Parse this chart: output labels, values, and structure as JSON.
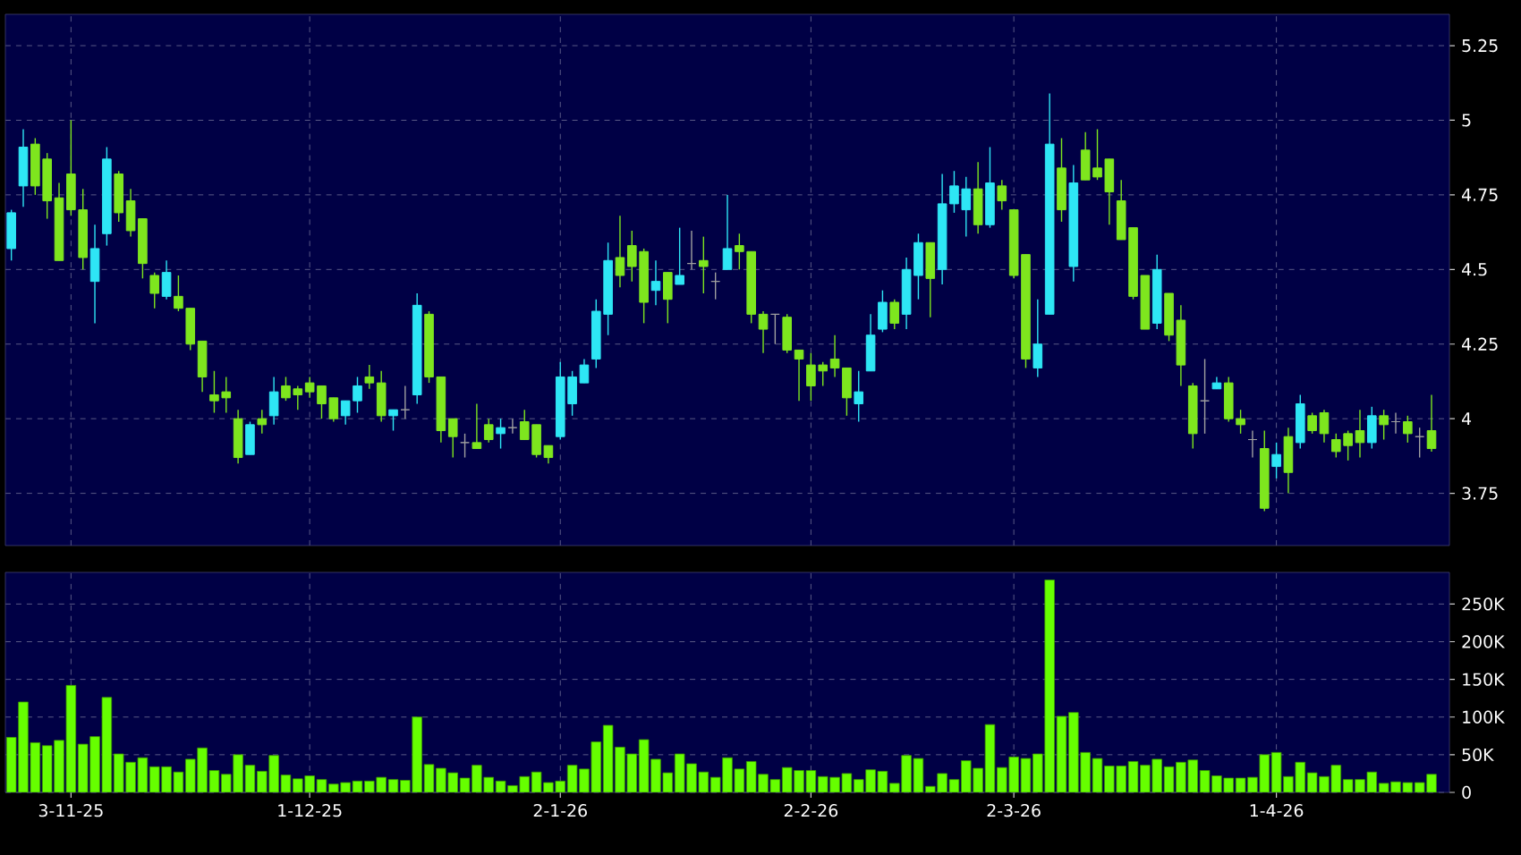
{
  "chart_data": [
    {
      "type": "candlestick",
      "categories": [
        null,
        null,
        null,
        null,
        null,
        null,
        null,
        null,
        null,
        null,
        null,
        null,
        null,
        null,
        null,
        null,
        null,
        null,
        null,
        null,
        null,
        null,
        null,
        null,
        null,
        null,
        null,
        null,
        null,
        null,
        null,
        null,
        null,
        null,
        null,
        null,
        null,
        null,
        null,
        null,
        null,
        null,
        null,
        null,
        null,
        null,
        null,
        null,
        null,
        null,
        null,
        null,
        null,
        null,
        null,
        null,
        null,
        null,
        null,
        null,
        null,
        null,
        null,
        null,
        null,
        null,
        null,
        null,
        null,
        null,
        null,
        null,
        null,
        null,
        null,
        null,
        null,
        null,
        null,
        null,
        null,
        null,
        null,
        null,
        null,
        null,
        null,
        null,
        null,
        null,
        null,
        null,
        null,
        null,
        null,
        null,
        null,
        null,
        null,
        null,
        null,
        null,
        null,
        null,
        null,
        null,
        null,
        null,
        null,
        null,
        null,
        null,
        null,
        null,
        null,
        null,
        null,
        null,
        null,
        null
      ],
      "ohlc": [
        [
          4.57,
          4.7,
          4.53,
          4.69
        ],
        [
          4.78,
          4.97,
          4.71,
          4.91
        ],
        [
          4.92,
          4.94,
          4.75,
          4.78
        ],
        [
          4.87,
          4.89,
          4.67,
          4.73
        ],
        [
          4.74,
          4.79,
          4.53,
          4.53
        ],
        [
          4.82,
          5.0,
          4.68,
          4.7
        ],
        [
          4.7,
          4.77,
          4.5,
          4.54
        ],
        [
          4.46,
          4.65,
          4.32,
          4.57
        ],
        [
          4.62,
          4.91,
          4.58,
          4.87
        ],
        [
          4.82,
          4.83,
          4.66,
          4.69
        ],
        [
          4.73,
          4.77,
          4.61,
          4.63
        ],
        [
          4.67,
          4.67,
          4.47,
          4.52
        ],
        [
          4.48,
          4.49,
          4.37,
          4.42
        ],
        [
          4.41,
          4.53,
          4.4,
          4.49
        ],
        [
          4.41,
          4.48,
          4.36,
          4.37
        ],
        [
          4.37,
          4.37,
          4.23,
          4.25
        ],
        [
          4.26,
          4.26,
          4.09,
          4.14
        ],
        [
          4.08,
          4.16,
          4.02,
          4.06
        ],
        [
          4.09,
          4.14,
          4.02,
          4.07
        ],
        [
          4.0,
          4.03,
          3.85,
          3.87
        ],
        [
          3.88,
          3.99,
          3.88,
          3.98
        ],
        [
          4.0,
          4.03,
          3.95,
          3.98
        ],
        [
          4.01,
          4.14,
          3.98,
          4.09
        ],
        [
          4.11,
          4.14,
          4.06,
          4.07
        ],
        [
          4.1,
          4.11,
          4.03,
          4.08
        ],
        [
          4.12,
          4.14,
          4.07,
          4.09
        ],
        [
          4.11,
          4.11,
          4.0,
          4.05
        ],
        [
          4.07,
          4.07,
          3.99,
          4.0
        ],
        [
          4.01,
          4.06,
          3.98,
          4.06
        ],
        [
          4.06,
          4.14,
          4.02,
          4.11
        ],
        [
          4.14,
          4.18,
          4.1,
          4.12
        ],
        [
          4.12,
          4.16,
          3.99,
          4.01
        ],
        [
          4.01,
          4.03,
          3.96,
          4.03
        ],
        [
          4.03,
          4.11,
          4.0,
          4.03
        ],
        [
          4.08,
          4.42,
          4.05,
          4.38
        ],
        [
          4.35,
          4.36,
          4.12,
          4.14
        ],
        [
          4.14,
          4.14,
          3.92,
          3.96
        ],
        [
          4.0,
          4.0,
          3.87,
          3.94
        ],
        [
          3.92,
          3.95,
          3.87,
          3.92
        ],
        [
          3.92,
          4.05,
          3.9,
          3.9
        ],
        [
          3.98,
          4.0,
          3.92,
          3.93
        ],
        [
          3.95,
          4.0,
          3.9,
          3.97
        ],
        [
          3.97,
          4.0,
          3.95,
          3.97
        ],
        [
          3.99,
          4.03,
          3.93,
          3.93
        ],
        [
          3.98,
          3.98,
          3.87,
          3.88
        ],
        [
          3.91,
          3.91,
          3.85,
          3.87
        ],
        [
          3.94,
          4.19,
          3.93,
          4.14
        ],
        [
          4.05,
          4.16,
          4.01,
          4.14
        ],
        [
          4.12,
          4.2,
          4.12,
          4.18
        ],
        [
          4.2,
          4.4,
          4.17,
          4.36
        ],
        [
          4.35,
          4.59,
          4.28,
          4.53
        ],
        [
          4.54,
          4.68,
          4.44,
          4.48
        ],
        [
          4.58,
          4.63,
          4.46,
          4.51
        ],
        [
          4.56,
          4.57,
          4.32,
          4.39
        ],
        [
          4.43,
          4.53,
          4.38,
          4.46
        ],
        [
          4.49,
          4.49,
          4.32,
          4.4
        ],
        [
          4.45,
          4.64,
          4.45,
          4.48
        ],
        [
          4.52,
          4.63,
          4.5,
          4.52
        ],
        [
          4.53,
          4.61,
          4.42,
          4.51
        ],
        [
          4.46,
          4.49,
          4.4,
          4.46
        ],
        [
          4.5,
          4.75,
          4.5,
          4.57
        ],
        [
          4.58,
          4.62,
          4.5,
          4.56
        ],
        [
          4.56,
          4.56,
          4.32,
          4.35
        ],
        [
          4.35,
          4.36,
          4.22,
          4.3
        ],
        [
          4.35,
          4.35,
          4.25,
          4.35
        ],
        [
          4.34,
          4.35,
          4.22,
          4.23
        ],
        [
          4.23,
          4.23,
          4.06,
          4.2
        ],
        [
          4.18,
          4.22,
          4.06,
          4.11
        ],
        [
          4.18,
          4.19,
          4.11,
          4.16
        ],
        [
          4.2,
          4.28,
          4.14,
          4.17
        ],
        [
          4.17,
          4.17,
          4.01,
          4.07
        ],
        [
          4.05,
          4.16,
          3.99,
          4.09
        ],
        [
          4.16,
          4.35,
          4.16,
          4.28
        ],
        [
          4.3,
          4.43,
          4.29,
          4.39
        ],
        [
          4.39,
          4.4,
          4.3,
          4.32
        ],
        [
          4.35,
          4.54,
          4.3,
          4.5
        ],
        [
          4.48,
          4.62,
          4.4,
          4.59
        ],
        [
          4.59,
          4.59,
          4.34,
          4.47
        ],
        [
          4.5,
          4.82,
          4.45,
          4.72
        ],
        [
          4.72,
          4.83,
          4.69,
          4.78
        ],
        [
          4.7,
          4.81,
          4.61,
          4.77
        ],
        [
          4.77,
          4.86,
          4.62,
          4.65
        ],
        [
          4.65,
          4.91,
          4.64,
          4.79
        ],
        [
          4.78,
          4.8,
          4.7,
          4.73
        ],
        [
          4.7,
          4.7,
          4.47,
          4.48
        ],
        [
          4.55,
          4.55,
          4.17,
          4.2
        ],
        [
          4.17,
          4.4,
          4.14,
          4.25
        ],
        [
          4.35,
          5.09,
          4.35,
          4.92
        ],
        [
          4.84,
          4.94,
          4.66,
          4.7
        ],
        [
          4.51,
          4.85,
          4.46,
          4.79
        ],
        [
          4.9,
          4.96,
          4.8,
          4.8
        ],
        [
          4.84,
          4.97,
          4.8,
          4.81
        ],
        [
          4.87,
          4.87,
          4.65,
          4.76
        ],
        [
          4.73,
          4.8,
          4.6,
          4.6
        ],
        [
          4.64,
          4.64,
          4.4,
          4.41
        ],
        [
          4.48,
          4.48,
          4.3,
          4.3
        ],
        [
          4.32,
          4.55,
          4.3,
          4.5
        ],
        [
          4.42,
          4.42,
          4.26,
          4.28
        ],
        [
          4.33,
          4.38,
          4.11,
          4.18
        ],
        [
          4.11,
          4.12,
          3.9,
          3.95
        ],
        [
          4.06,
          4.2,
          3.95,
          4.06
        ],
        [
          4.1,
          4.14,
          4.1,
          4.12
        ],
        [
          4.12,
          4.14,
          3.99,
          4.0
        ],
        [
          4.0,
          4.03,
          3.95,
          3.98
        ],
        [
          3.93,
          3.96,
          3.87,
          3.93
        ],
        [
          3.9,
          3.96,
          3.69,
          3.7
        ],
        [
          3.84,
          3.92,
          3.8,
          3.88
        ],
        [
          3.94,
          3.97,
          3.75,
          3.82
        ],
        [
          3.92,
          4.08,
          3.9,
          4.05
        ],
        [
          4.01,
          4.02,
          3.95,
          3.96
        ],
        [
          4.02,
          4.03,
          3.92,
          3.95
        ],
        [
          3.93,
          3.95,
          3.87,
          3.89
        ],
        [
          3.95,
          3.96,
          3.86,
          3.91
        ],
        [
          3.96,
          4.03,
          3.87,
          3.92
        ],
        [
          3.92,
          4.04,
          3.9,
          4.01
        ],
        [
          4.01,
          4.03,
          3.93,
          3.98
        ],
        [
          3.99,
          4.02,
          3.95,
          3.99
        ],
        [
          3.99,
          4.01,
          3.92,
          3.95
        ],
        [
          3.94,
          3.97,
          3.87,
          3.94
        ],
        [
          3.96,
          4.08,
          3.89,
          3.9
        ]
      ],
      "colors": [
        "#2ee6f5",
        "#2ee6f5",
        "#7ee61e",
        "#7ee61e",
        "#7ee61e",
        "#7ee61e",
        "#7ee61e",
        "#2ee6f5",
        "#2ee6f5",
        "#7ee61e",
        "#7ee61e",
        "#7ee61e",
        "#7ee61e",
        "#2ee6f5",
        "#7ee61e",
        "#7ee61e",
        "#7ee61e",
        "#7ee61e",
        "#7ee61e",
        "#7ee61e",
        "#2ee6f5",
        "#7ee61e",
        "#2ee6f5",
        "#7ee61e",
        "#7ee61e",
        "#7ee61e",
        "#7ee61e",
        "#7ee61e",
        "#2ee6f5",
        "#2ee6f5",
        "#7ee61e",
        "#7ee61e",
        "#2ee6f5",
        "#a0a0a0",
        "#2ee6f5",
        "#7ee61e",
        "#7ee61e",
        "#7ee61e",
        "#a0a0a0",
        "#7ee61e",
        "#7ee61e",
        "#2ee6f5",
        "#a0a0a0",
        "#7ee61e",
        "#7ee61e",
        "#7ee61e",
        "#2ee6f5",
        "#2ee6f5",
        "#2ee6f5",
        "#2ee6f5",
        "#2ee6f5",
        "#7ee61e",
        "#7ee61e",
        "#7ee61e",
        "#2ee6f5",
        "#7ee61e",
        "#2ee6f5",
        "#a0a0a0",
        "#7ee61e",
        "#a0a0a0",
        "#2ee6f5",
        "#7ee61e",
        "#7ee61e",
        "#7ee61e",
        "#a0a0a0",
        "#7ee61e",
        "#7ee61e",
        "#7ee61e",
        "#7ee61e",
        "#7ee61e",
        "#7ee61e",
        "#2ee6f5",
        "#2ee6f5",
        "#2ee6f5",
        "#7ee61e",
        "#2ee6f5",
        "#2ee6f5",
        "#7ee61e",
        "#2ee6f5",
        "#2ee6f5",
        "#2ee6f5",
        "#7ee61e",
        "#2ee6f5",
        "#7ee61e",
        "#7ee61e",
        "#7ee61e",
        "#2ee6f5",
        "#2ee6f5",
        "#7ee61e",
        "#2ee6f5",
        "#7ee61e",
        "#7ee61e",
        "#7ee61e",
        "#7ee61e",
        "#7ee61e",
        "#7ee61e",
        "#2ee6f5",
        "#7ee61e",
        "#7ee61e",
        "#7ee61e",
        "#a0a0a0",
        "#2ee6f5",
        "#7ee61e",
        "#7ee61e",
        "#a0a0a0",
        "#7ee61e",
        "#2ee6f5",
        "#7ee61e",
        "#2ee6f5",
        "#7ee61e",
        "#7ee61e",
        "#7ee61e",
        "#7ee61e",
        "#7ee61e",
        "#2ee6f5",
        "#7ee61e",
        "#a0a0a0",
        "#7ee61e",
        "#a0a0a0",
        "#7ee61e"
      ],
      "ylim": [
        3.575,
        5.355
      ],
      "yticks": [
        3.75,
        4,
        4.25,
        4.5,
        4.75,
        5,
        5.25
      ],
      "grid": true,
      "tick_labels": "y"
    },
    {
      "type": "bar",
      "categories": [
        null,
        null,
        null,
        null,
        null,
        "3-11-25",
        null,
        null,
        null,
        null,
        null,
        null,
        null,
        null,
        null,
        null,
        null,
        null,
        null,
        null,
        null,
        null,
        null,
        null,
        null,
        "1-12-25",
        null,
        null,
        null,
        null,
        null,
        null,
        null,
        null,
        null,
        null,
        null,
        null,
        null,
        null,
        null,
        null,
        null,
        null,
        null,
        null,
        "2-1-26",
        null,
        null,
        null,
        null,
        null,
        null,
        null,
        null,
        null,
        null,
        null,
        null,
        null,
        null,
        null,
        null,
        null,
        null,
        null,
        null,
        "2-2-26",
        null,
        null,
        null,
        null,
        null,
        null,
        null,
        null,
        null,
        null,
        null,
        null,
        null,
        null,
        null,
        null,
        "2-3-26",
        null,
        null,
        null,
        null,
        null,
        null,
        null,
        null,
        null,
        null,
        null,
        null,
        null,
        null,
        null,
        null,
        null,
        null,
        null,
        null,
        null,
        "1-4-26",
        null,
        null,
        null,
        null,
        null,
        null,
        null,
        null,
        null,
        null,
        null,
        null,
        null
      ],
      "values": [
        73000,
        120000,
        66000,
        62000,
        69000,
        142000,
        64000,
        74000,
        126000,
        51000,
        40000,
        46000,
        34000,
        34000,
        27000,
        44000,
        59000,
        29000,
        24000,
        50000,
        36000,
        28000,
        49000,
        23000,
        18000,
        22000,
        17000,
        11000,
        13000,
        15000,
        15000,
        20000,
        17000,
        16000,
        100000,
        37000,
        32000,
        26000,
        19000,
        36000,
        20000,
        15000,
        9000,
        21000,
        27000,
        13000,
        15000,
        36000,
        31000,
        67000,
        89000,
        60000,
        51000,
        70000,
        44000,
        26000,
        51000,
        38000,
        27000,
        20000,
        46000,
        31000,
        41000,
        24000,
        17000,
        33000,
        29000,
        29000,
        21000,
        20000,
        25000,
        17000,
        30000,
        28000,
        12000,
        49000,
        45000,
        8000,
        25000,
        17000,
        42000,
        32000,
        90000,
        33000,
        47000,
        45000,
        51000,
        282000,
        101000,
        106000,
        53000,
        45000,
        35000,
        35000,
        41000,
        36000,
        44000,
        34000,
        40000,
        43000,
        29000,
        22000,
        19000,
        19000,
        20000,
        50000,
        53000,
        21000,
        40000,
        26000,
        21000,
        36000,
        17000,
        17000,
        27000,
        12000,
        14000,
        13000,
        13000,
        24000
      ],
      "color": "#66ff00",
      "ylim": [
        0,
        292000
      ],
      "yticks": [
        0,
        {
          "value": 50000,
          "label": "50K"
        },
        {
          "value": 100000,
          "label": "100K"
        },
        {
          "value": 150000,
          "label": "150K"
        },
        {
          "value": 200000,
          "label": "200K"
        },
        {
          "value": 250000,
          "label": "250K"
        }
      ],
      "grid": true
    }
  ]
}
